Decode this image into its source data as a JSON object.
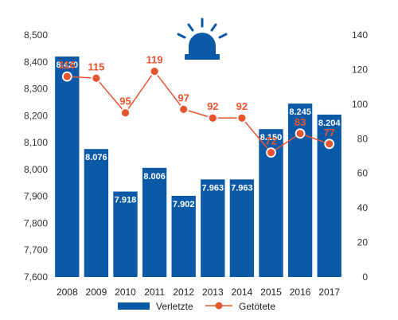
{
  "chart_data": {
    "type": "bar",
    "categories": [
      "2008",
      "2009",
      "2010",
      "2011",
      "2012",
      "2013",
      "2014",
      "2015",
      "2016",
      "2017"
    ],
    "series": [
      {
        "name": "Verletzte",
        "type": "bar",
        "axis": "left",
        "values": [
          8420,
          8076,
          7918,
          8006,
          7902,
          7963,
          7963,
          8150,
          8245,
          8204
        ],
        "labels": [
          "8.420",
          "8.076",
          "7.918",
          "8.006",
          "7.902",
          "7.963",
          "7.963",
          "8.150",
          "8.245",
          "8.204"
        ],
        "color": "#0b5aa8"
      },
      {
        "name": "Getötete",
        "type": "line",
        "axis": "right",
        "values": [
          116,
          115,
          95,
          119,
          97,
          92,
          92,
          72,
          83,
          77
        ],
        "labels": [
          "116",
          "115",
          "95",
          "119",
          "97",
          "92",
          "92",
          "72",
          "83",
          "77"
        ],
        "color": "#e8542f"
      }
    ],
    "left_axis": {
      "ylim": [
        7600,
        8500
      ],
      "ticks": [
        "7,600",
        "7,700",
        "7,800",
        "7,900",
        "8,000",
        "8,100",
        "8,200",
        "8,300",
        "8,400",
        "8,500"
      ],
      "tick_values": [
        7600,
        7700,
        7800,
        7900,
        8000,
        8100,
        8200,
        8300,
        8400,
        8500
      ]
    },
    "right_axis": {
      "ylim": [
        0,
        140
      ],
      "ticks": [
        "0",
        "20",
        "40",
        "60",
        "80",
        "100",
        "120",
        "140"
      ],
      "tick_values": [
        0,
        20,
        40,
        60,
        80,
        100,
        120,
        140
      ]
    },
    "grid": false,
    "legend_position": "bottom",
    "icon": "police-siren-icon",
    "icon_color": "#0b5aa8"
  }
}
